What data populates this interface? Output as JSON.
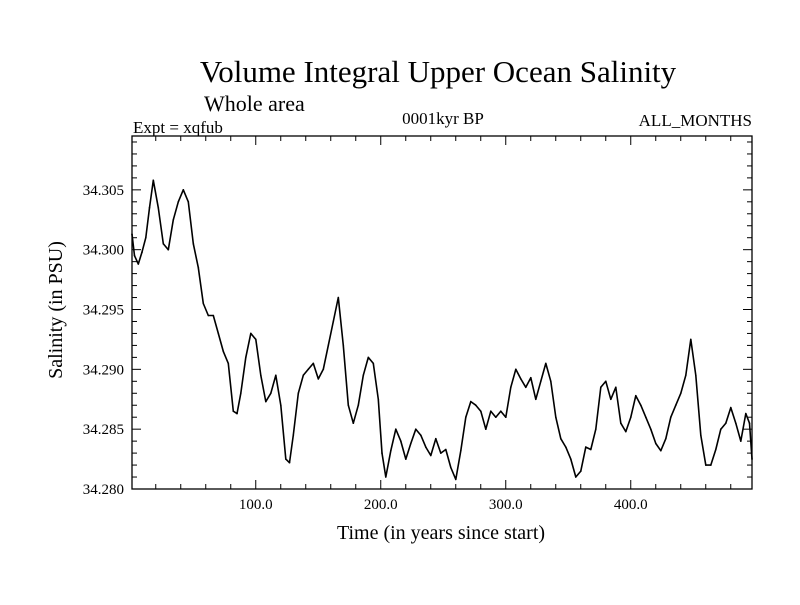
{
  "chart_data": {
    "type": "line",
    "title": "Volume Integral Upper Ocean Salinity",
    "subtitle": "Whole area",
    "experiment_label": "Expt = xqfub",
    "period_label": "0001kyr BP",
    "months_label": "ALL_MONTHS",
    "xlabel": "Time (in years since start)",
    "ylabel": "Salinity (in PSU)",
    "xlim": [
      1,
      497
    ],
    "ylim": [
      34.28,
      34.3095
    ],
    "xticks": [
      100,
      200,
      300,
      400
    ],
    "xtick_labels": [
      "100.0",
      "200.0",
      "300.0",
      "400.0"
    ],
    "yticks": [
      34.28,
      34.285,
      34.29,
      34.295,
      34.3,
      34.305
    ],
    "ytick_labels": [
      "34.280",
      "34.285",
      "34.290",
      "34.295",
      "34.300",
      "34.305"
    ],
    "grid": false,
    "series": [
      {
        "name": "Salinity",
        "color": "#000000",
        "x": [
          1,
          3,
          6,
          9,
          12,
          15,
          18,
          22,
          26,
          30,
          34,
          38,
          42,
          46,
          50,
          54,
          58,
          62,
          66,
          70,
          74,
          78,
          82,
          85,
          88,
          92,
          96,
          100,
          104,
          108,
          112,
          116,
          120,
          124,
          127,
          130,
          134,
          138,
          142,
          146,
          150,
          154,
          158,
          162,
          166,
          170,
          174,
          178,
          182,
          186,
          190,
          194,
          198,
          201,
          204,
          208,
          212,
          216,
          220,
          224,
          228,
          232,
          236,
          240,
          244,
          248,
          252,
          256,
          260,
          264,
          268,
          272,
          276,
          280,
          284,
          288,
          292,
          296,
          300,
          304,
          308,
          312,
          316,
          320,
          324,
          328,
          332,
          336,
          340,
          344,
          348,
          352,
          356,
          360,
          364,
          368,
          372,
          376,
          380,
          384,
          388,
          392,
          396,
          400,
          404,
          408,
          412,
          416,
          420,
          424,
          428,
          432,
          436,
          440,
          444,
          448,
          452,
          456,
          460,
          464,
          468,
          472,
          476,
          480,
          484,
          488,
          492,
          495,
          497
        ],
        "y": [
          34.3013,
          34.2995,
          34.2988,
          34.2998,
          34.301,
          34.3035,
          34.3058,
          34.3035,
          34.3005,
          34.3,
          34.3025,
          34.304,
          34.305,
          34.304,
          34.3005,
          34.2985,
          34.2955,
          34.2945,
          34.2945,
          34.293,
          34.2915,
          34.2905,
          34.2865,
          34.2863,
          34.288,
          34.291,
          34.293,
          34.2925,
          34.2895,
          34.2873,
          34.288,
          34.2895,
          34.287,
          34.2825,
          34.2822,
          34.2845,
          34.288,
          34.2895,
          34.29,
          34.2905,
          34.2892,
          34.29,
          34.292,
          34.294,
          34.296,
          34.292,
          34.287,
          34.2855,
          34.287,
          34.2895,
          34.291,
          34.2905,
          34.2875,
          34.283,
          34.281,
          34.2832,
          34.285,
          34.284,
          34.2825,
          34.2838,
          34.285,
          34.2845,
          34.2835,
          34.2828,
          34.2842,
          34.283,
          34.2833,
          34.2818,
          34.2808,
          34.2832,
          34.286,
          34.2873,
          34.287,
          34.2865,
          34.285,
          34.2865,
          34.286,
          34.2865,
          34.286,
          34.2885,
          34.29,
          34.2892,
          34.2885,
          34.2893,
          34.2875,
          34.289,
          34.2905,
          34.289,
          34.286,
          34.2842,
          34.2835,
          34.2825,
          34.281,
          34.2815,
          34.2835,
          34.2833,
          34.285,
          34.2885,
          34.289,
          34.2875,
          34.2885,
          34.2855,
          34.2848,
          34.286,
          34.2878,
          34.287,
          34.286,
          34.285,
          34.2838,
          34.2832,
          34.2842,
          34.286,
          34.287,
          34.288,
          34.2895,
          34.2925,
          34.2895,
          34.2845,
          34.282,
          34.282,
          34.2833,
          34.285,
          34.2855,
          34.2868,
          34.2855,
          34.284,
          34.2863,
          34.2855,
          34.2825
        ]
      }
    ]
  }
}
